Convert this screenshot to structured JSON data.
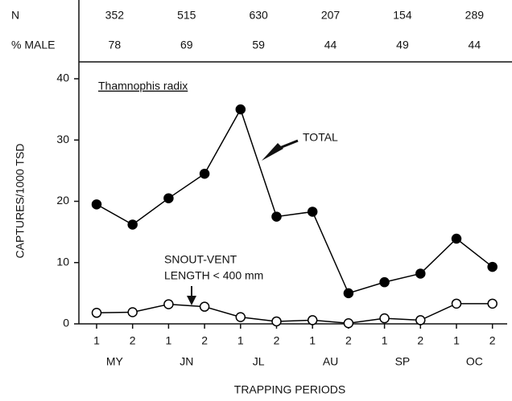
{
  "chart_data": {
    "type": "line",
    "header": {
      "row_labels": [
        "N",
        "% MALE"
      ],
      "rows": [
        [
          352,
          515,
          630,
          207,
          154,
          289
        ],
        [
          78,
          69,
          59,
          44,
          49,
          44
        ]
      ]
    },
    "species": "Thamnophis radix",
    "ylabel": "CAPTURES/1000 TSD",
    "xlabel": "TRAPPING PERIODS",
    "categories": [
      "1",
      "2",
      "1",
      "2",
      "1",
      "2",
      "1",
      "2",
      "1",
      "2",
      "1",
      "2"
    ],
    "groups": [
      "MY",
      "JN",
      "JL",
      "AU",
      "SP",
      "OC"
    ],
    "ylim": [
      0,
      40
    ],
    "yticks": [
      0,
      10,
      20,
      30,
      40
    ],
    "series": [
      {
        "name": "TOTAL",
        "color": "#000000",
        "marker_fill": "#000000",
        "values": [
          19.5,
          16.2,
          20.5,
          24.5,
          35,
          17.5,
          18.3,
          5,
          6.8,
          8.2,
          13.9,
          9.3
        ]
      },
      {
        "name": "SNOUT-VENT",
        "name_line2": "LENGTH < 400 mm",
        "color": "#000000",
        "marker_fill": "#ffffff",
        "values": [
          1.8,
          1.9,
          3.2,
          2.8,
          1.1,
          0.4,
          0.6,
          0.1,
          0.9,
          0.6,
          3.3,
          3.3
        ]
      }
    ]
  }
}
